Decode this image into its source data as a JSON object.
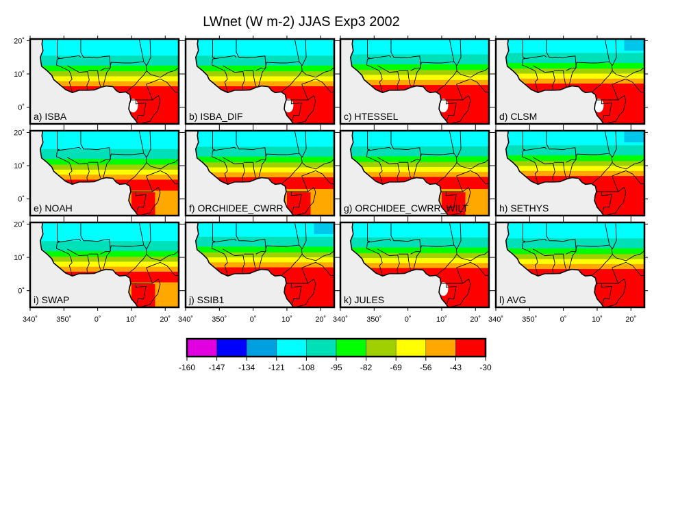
{
  "chart_data": {
    "type": "heatmap",
    "title": "LWnet (W m-2) JJAS Exp3 2002",
    "x_tick_labels": [
      "340˚",
      "350˚",
      "0˚",
      "10˚",
      "20˚"
    ],
    "y_tick_labels": [
      "20˚",
      "10˚",
      "0˚"
    ],
    "xlim_lon": [
      -20,
      24
    ],
    "ylim_lat": [
      -5,
      20.5
    ],
    "panels": [
      {
        "label": "a) ISBA"
      },
      {
        "label": "b) ISBA_DIF"
      },
      {
        "label": "c) HTESSEL"
      },
      {
        "label": "d) CLSM"
      },
      {
        "label": "e) NOAH"
      },
      {
        "label": "f) ORCHIDEE_CWRR"
      },
      {
        "label": "g) ORCHIDEE_CWRR_WILT"
      },
      {
        "label": "h) SETHYS"
      },
      {
        "label": "i) SWAP"
      },
      {
        "label": "j) SSIB1"
      },
      {
        "label": "k) JULES"
      },
      {
        "label": "l) AVG"
      }
    ],
    "colorbar": {
      "levels": [
        "-160",
        "-147",
        "-134",
        "-121",
        "-108",
        "-95",
        "-82",
        "-69",
        "-56",
        "-43",
        "-30"
      ],
      "colors": [
        "#e000e0",
        "#0000ff",
        "#00a0e0",
        "#00ffff",
        "#00e0b8",
        "#00ff00",
        "#a0d000",
        "#ffff00",
        "#ffa800",
        "#ff0000"
      ]
    }
  }
}
